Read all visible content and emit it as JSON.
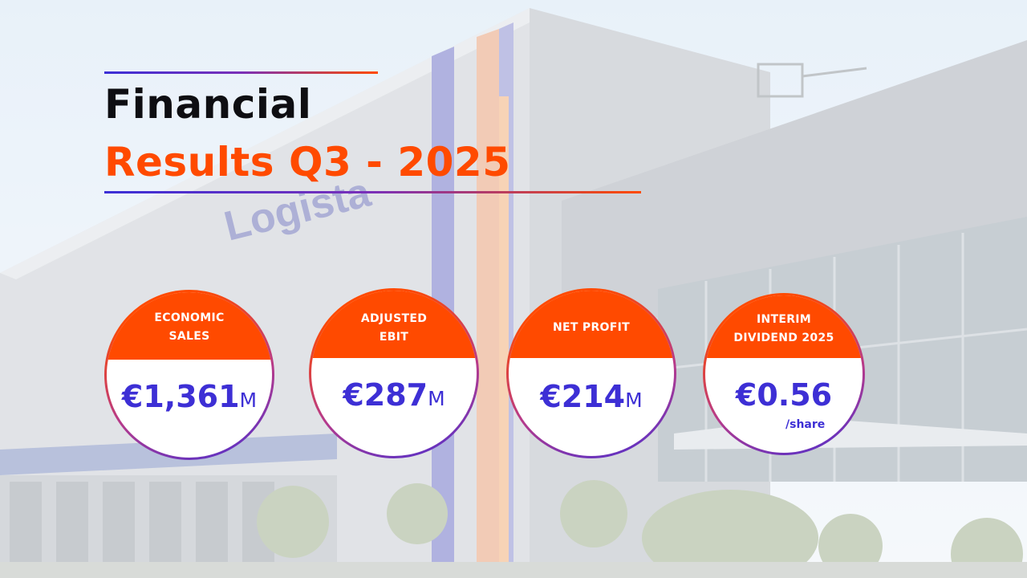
{
  "title": {
    "line1": "Financial",
    "line2": "Results Q3 - 2025"
  },
  "background": {
    "building_sign": "Logista"
  },
  "colors": {
    "accent_orange": "#ff4a00",
    "accent_blue": "#3d2fd5",
    "title_dark": "#0e0e12"
  },
  "kpis": [
    {
      "label_lines": [
        "ECONOMIC",
        "SALES"
      ],
      "value": "€1,361",
      "unit": "M"
    },
    {
      "label_lines": [
        "ADJUSTED",
        "EBIT"
      ],
      "value": "€287",
      "unit": "M"
    },
    {
      "label_lines": [
        "NET PROFIT"
      ],
      "value": "€214",
      "unit": "M"
    },
    {
      "label_lines": [
        "INTERIM",
        "DIVIDEND 2025"
      ],
      "value": "€0.56",
      "sub": "/share"
    }
  ]
}
